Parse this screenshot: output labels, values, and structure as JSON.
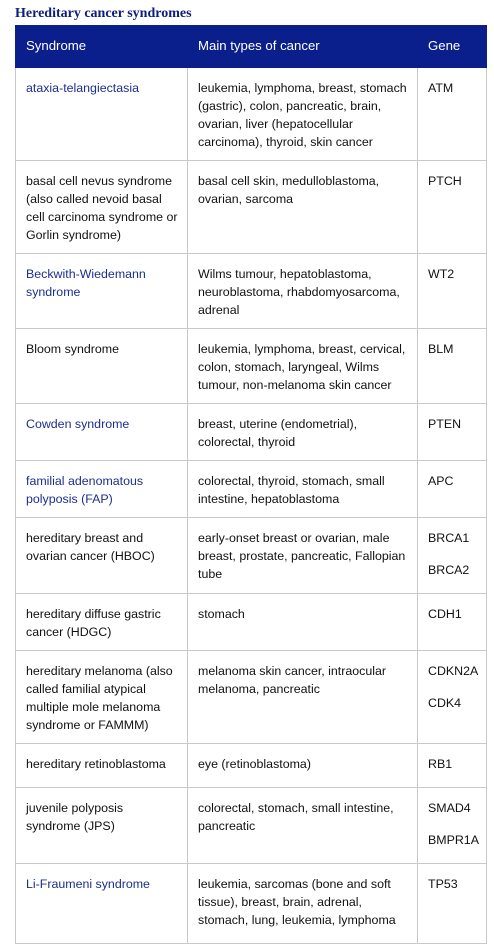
{
  "title": "Hereditary cancer syndromes",
  "table": {
    "header": [
      "Syndrome",
      "Main types of cancer",
      "Gene"
    ],
    "rows": [
      [
        "ataxia-telangiectasia",
        "leukemia, lymphoma, breast, stomach (gastric), colon, pancreatic, brain, ovarian, liver (hepatocellular carcinoma), thyroid, skin cancer",
        [
          "ATM"
        ]
      ],
      [
        "basal cell nevus syndrome (also called nevoid basal cell carcinoma syndrome or Gorlin syndrome)",
        "basal cell skin, medulloblastoma, ovarian, sarcoma",
        [
          "PTCH"
        ]
      ],
      [
        "Beckwith-Wiedemann syndrome",
        "Wilms tumour, hepatoblastoma, neuroblastoma, rhabdomyosarcoma, adrenal",
        [
          "WT2"
        ]
      ],
      [
        "Bloom syndrome",
        "leukemia, lymphoma, breast, cervical, colon, stomach, laryngeal, Wilms tumour, non-melanoma skin cancer",
        [
          "BLM"
        ]
      ],
      [
        "Cowden syndrome",
        "breast, uterine (endometrial), colorectal, thyroid",
        [
          "PTEN"
        ]
      ],
      [
        "familial adenomatous polyposis (FAP)",
        "colorectal, thyroid, stomach, small intestine, hepatoblastoma",
        [
          "APC"
        ]
      ],
      [
        "hereditary breast and ovarian cancer (HBOC)",
        "early-onset breast or ovarian, male breast, prostate, pancreatic, Fallopian tube",
        [
          "BRCA1",
          "BRCA2"
        ]
      ],
      [
        "hereditary diffuse gastric cancer (HDGC)",
        "stomach",
        [
          "CDH1"
        ]
      ],
      [
        "hereditary melanoma (also called familial atypical multiple mole melanoma syndrome or FAMMM)",
        "melanoma skin cancer, intraocular melanoma, pancreatic",
        [
          "CDKN2A",
          "CDK4"
        ]
      ],
      [
        "hereditary retinoblastoma",
        "eye (retinoblastoma)",
        [
          "RB1"
        ]
      ],
      [
        "juvenile polyposis syndrome (JPS)",
        "colorectal, stomach, small intestine, pancreatic",
        [
          "SMAD4",
          "BMPR1A"
        ]
      ],
      [
        "Li-Fraumeni syndrome",
        "leukemia, sarcomas (bone and soft tissue), breast, brain, adrenal, stomach, lung, leukemia, lymphoma",
        [
          "TP53"
        ]
      ]
    ]
  }
}
